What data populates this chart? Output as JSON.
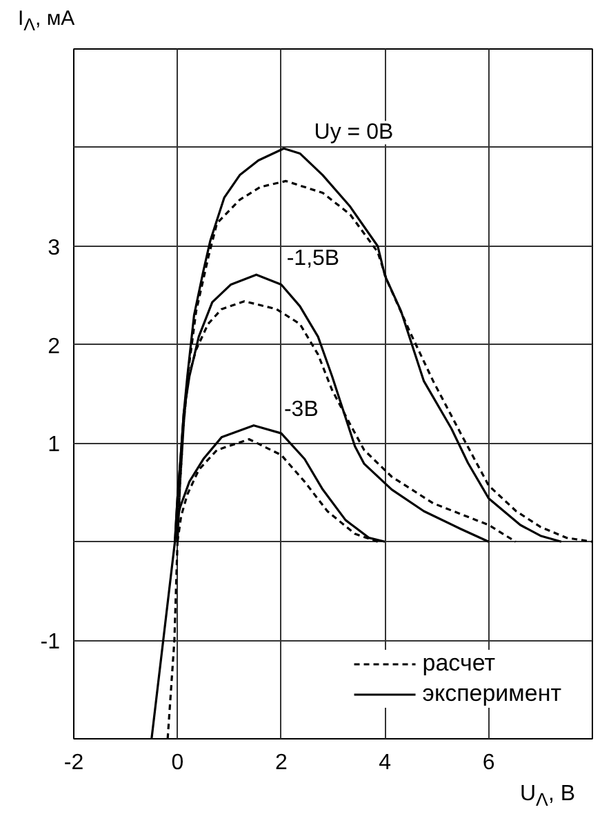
{
  "chart_data": {
    "type": "line",
    "xlabel": "U$_{Λ}$, В",
    "ylabel": "I$_{Λ}$, мА",
    "xlim": [
      -2,
      8
    ],
    "ylim": [
      -2,
      5
    ],
    "xticks": [
      -2,
      0,
      2,
      4,
      6
    ],
    "yticks": [
      -1,
      {
        "value": 0,
        "label": null
      },
      1,
      2,
      3,
      {
        "value": 4,
        "label": null
      }
    ],
    "grid": true,
    "legend": "bottom right",
    "marker": "none",
    "series": [
      {
        "name": "расчет",
        "color": "#000000",
        "line_style": "dashed",
        "x": [
          -0.19,
          -0.06,
          0.0,
          0.05,
          0.12,
          0.2,
          0.36,
          0.6,
          0.76,
          1.2,
          1.6,
          2.09,
          2.8,
          3.33,
          3.86,
          4.04,
          4.49,
          4.93,
          5.46,
          6.0,
          6.53,
          7.0,
          7.5,
          8.0
        ],
        "values": [
          -2.0,
          -1.0,
          0.0,
          0.6,
          1.2,
          1.7,
          2.34,
          2.9,
          3.23,
          3.47,
          3.6,
          3.66,
          3.54,
          3.32,
          2.94,
          2.65,
          2.12,
          1.63,
          1.1,
          0.57,
          0.31,
          0.15,
          0.04,
          0.0
        ]
      },
      {
        "name": "эксперимент",
        "color": "#000000",
        "line_style": "solid",
        "x": [
          -0.5,
          -0.05,
          0.0,
          0.06,
          0.12,
          0.19,
          0.32,
          0.5,
          0.63,
          0.9,
          1.2,
          1.56,
          2.05,
          2.36,
          2.8,
          3.33,
          3.86,
          4.0,
          4.31,
          4.75,
          5.28,
          5.6,
          6.0,
          6.61,
          7.0,
          7.4
        ],
        "values": [
          -2.0,
          0.0,
          0.45,
          0.85,
          1.3,
          1.68,
          2.3,
          2.75,
          3.05,
          3.49,
          3.72,
          3.87,
          3.99,
          3.94,
          3.72,
          3.4,
          3.0,
          2.7,
          2.34,
          1.63,
          1.15,
          0.8,
          0.44,
          0.17,
          0.06,
          0.0
        ]
      },
      {
        "color": "#000000",
        "line_style": "dashed",
        "x": [
          0.0,
          0.05,
          0.12,
          0.2,
          0.36,
          0.59,
          0.85,
          1.29,
          1.91,
          2.36,
          2.71,
          2.98,
          3.33,
          3.6,
          4.13,
          4.93,
          6.0,
          6.52
        ],
        "values": [
          0.0,
          0.6,
          1.2,
          1.65,
          1.95,
          2.21,
          2.36,
          2.44,
          2.36,
          2.21,
          1.9,
          1.54,
          1.19,
          0.93,
          0.66,
          0.39,
          0.17,
          0.0
        ]
      },
      {
        "color": "#000000",
        "line_style": "solid",
        "x": [
          -0.05,
          0.0,
          0.06,
          0.12,
          0.23,
          0.41,
          0.67,
          1.03,
          1.52,
          2.0,
          2.36,
          2.71,
          2.98,
          3.42,
          3.6,
          4.13,
          4.75,
          5.46,
          6.0
        ],
        "values": [
          0.0,
          0.45,
          0.85,
          1.3,
          1.68,
          2.08,
          2.43,
          2.61,
          2.71,
          2.61,
          2.39,
          2.08,
          1.68,
          0.97,
          0.79,
          0.53,
          0.31,
          0.13,
          0.0
        ]
      },
      {
        "color": "#000000",
        "line_style": "dashed",
        "x": [
          0.0,
          0.07,
          0.19,
          0.41,
          0.76,
          1.38,
          2.0,
          2.45,
          2.89,
          3.42,
          3.86
        ],
        "values": [
          0.0,
          0.26,
          0.48,
          0.73,
          0.93,
          1.04,
          0.88,
          0.61,
          0.31,
          0.08,
          0.0
        ]
      },
      {
        "color": "#000000",
        "line_style": "solid",
        "x": [
          -0.05,
          0.02,
          0.05,
          0.23,
          0.5,
          0.85,
          1.47,
          2.0,
          2.45,
          2.8,
          3.24,
          3.69,
          4.0
        ],
        "values": [
          0.0,
          0.28,
          0.35,
          0.61,
          0.84,
          1.06,
          1.18,
          1.1,
          0.84,
          0.53,
          0.22,
          0.04,
          0.0
        ]
      }
    ],
    "annotations": [
      "Uy = 0В",
      "-1,5В",
      "-3В"
    ]
  }
}
